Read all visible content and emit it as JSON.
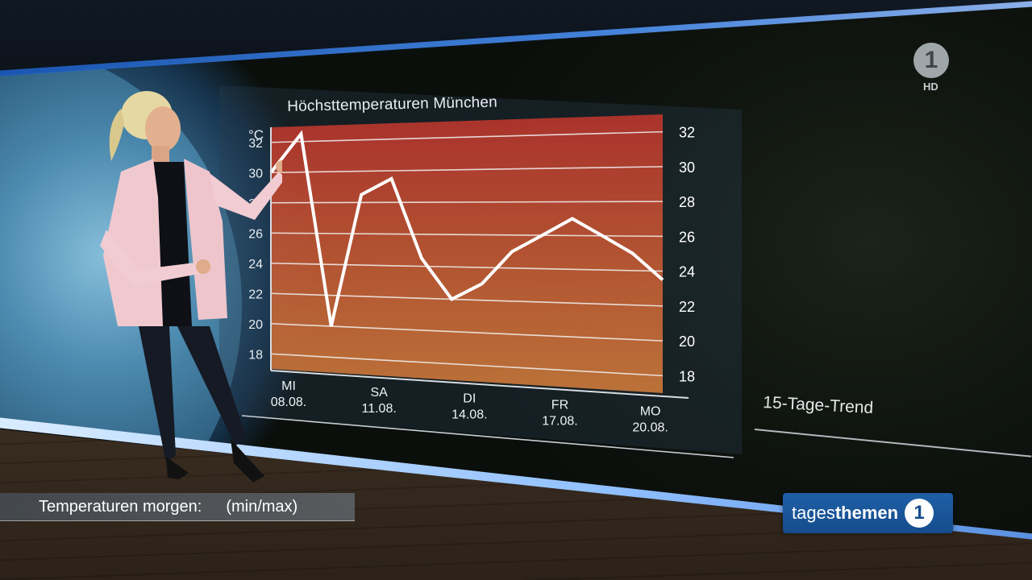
{
  "broadcast": {
    "channel_logo": "1",
    "channel_hd": "HD",
    "show_logo_light": "tages",
    "show_logo_bold": "themen",
    "show_logo_one": "1"
  },
  "lower_third": {
    "label": "Temperaturen morgen:",
    "range": "(min/max)"
  },
  "side_panel": {
    "label": "15-Tage-Trend"
  },
  "colors": {
    "chart_top": "#b6342c",
    "chart_bottom": "#c9793a",
    "line": "#ffffff",
    "show_logo_bg": "#1a5699"
  },
  "chart_data": {
    "type": "line",
    "title": "Höchsttemperaturen München",
    "ylabel": "°C",
    "ylim": [
      17,
      33
    ],
    "yticks": [
      18,
      20,
      22,
      24,
      26,
      28,
      30,
      32
    ],
    "xlabels": [
      {
        "day": "MI",
        "date": "08.08."
      },
      {
        "day": "SA",
        "date": "11.08."
      },
      {
        "day": "DI",
        "date": "14.08."
      },
      {
        "day": "FR",
        "date": "17.08."
      },
      {
        "day": "MO",
        "date": "20.08."
      }
    ],
    "x": [
      "08.08.",
      "09.08.",
      "10.08.",
      "11.08.",
      "12.08.",
      "13.08.",
      "14.08.",
      "15.08.",
      "16.08.",
      "17.08.",
      "18.08.",
      "19.08.",
      "20.08.",
      "21.08."
    ],
    "values": [
      30,
      32.5,
      20,
      28.5,
      29.5,
      24.5,
      22,
      23,
      25,
      26,
      27,
      26,
      25,
      23.5
    ],
    "grid": true
  }
}
